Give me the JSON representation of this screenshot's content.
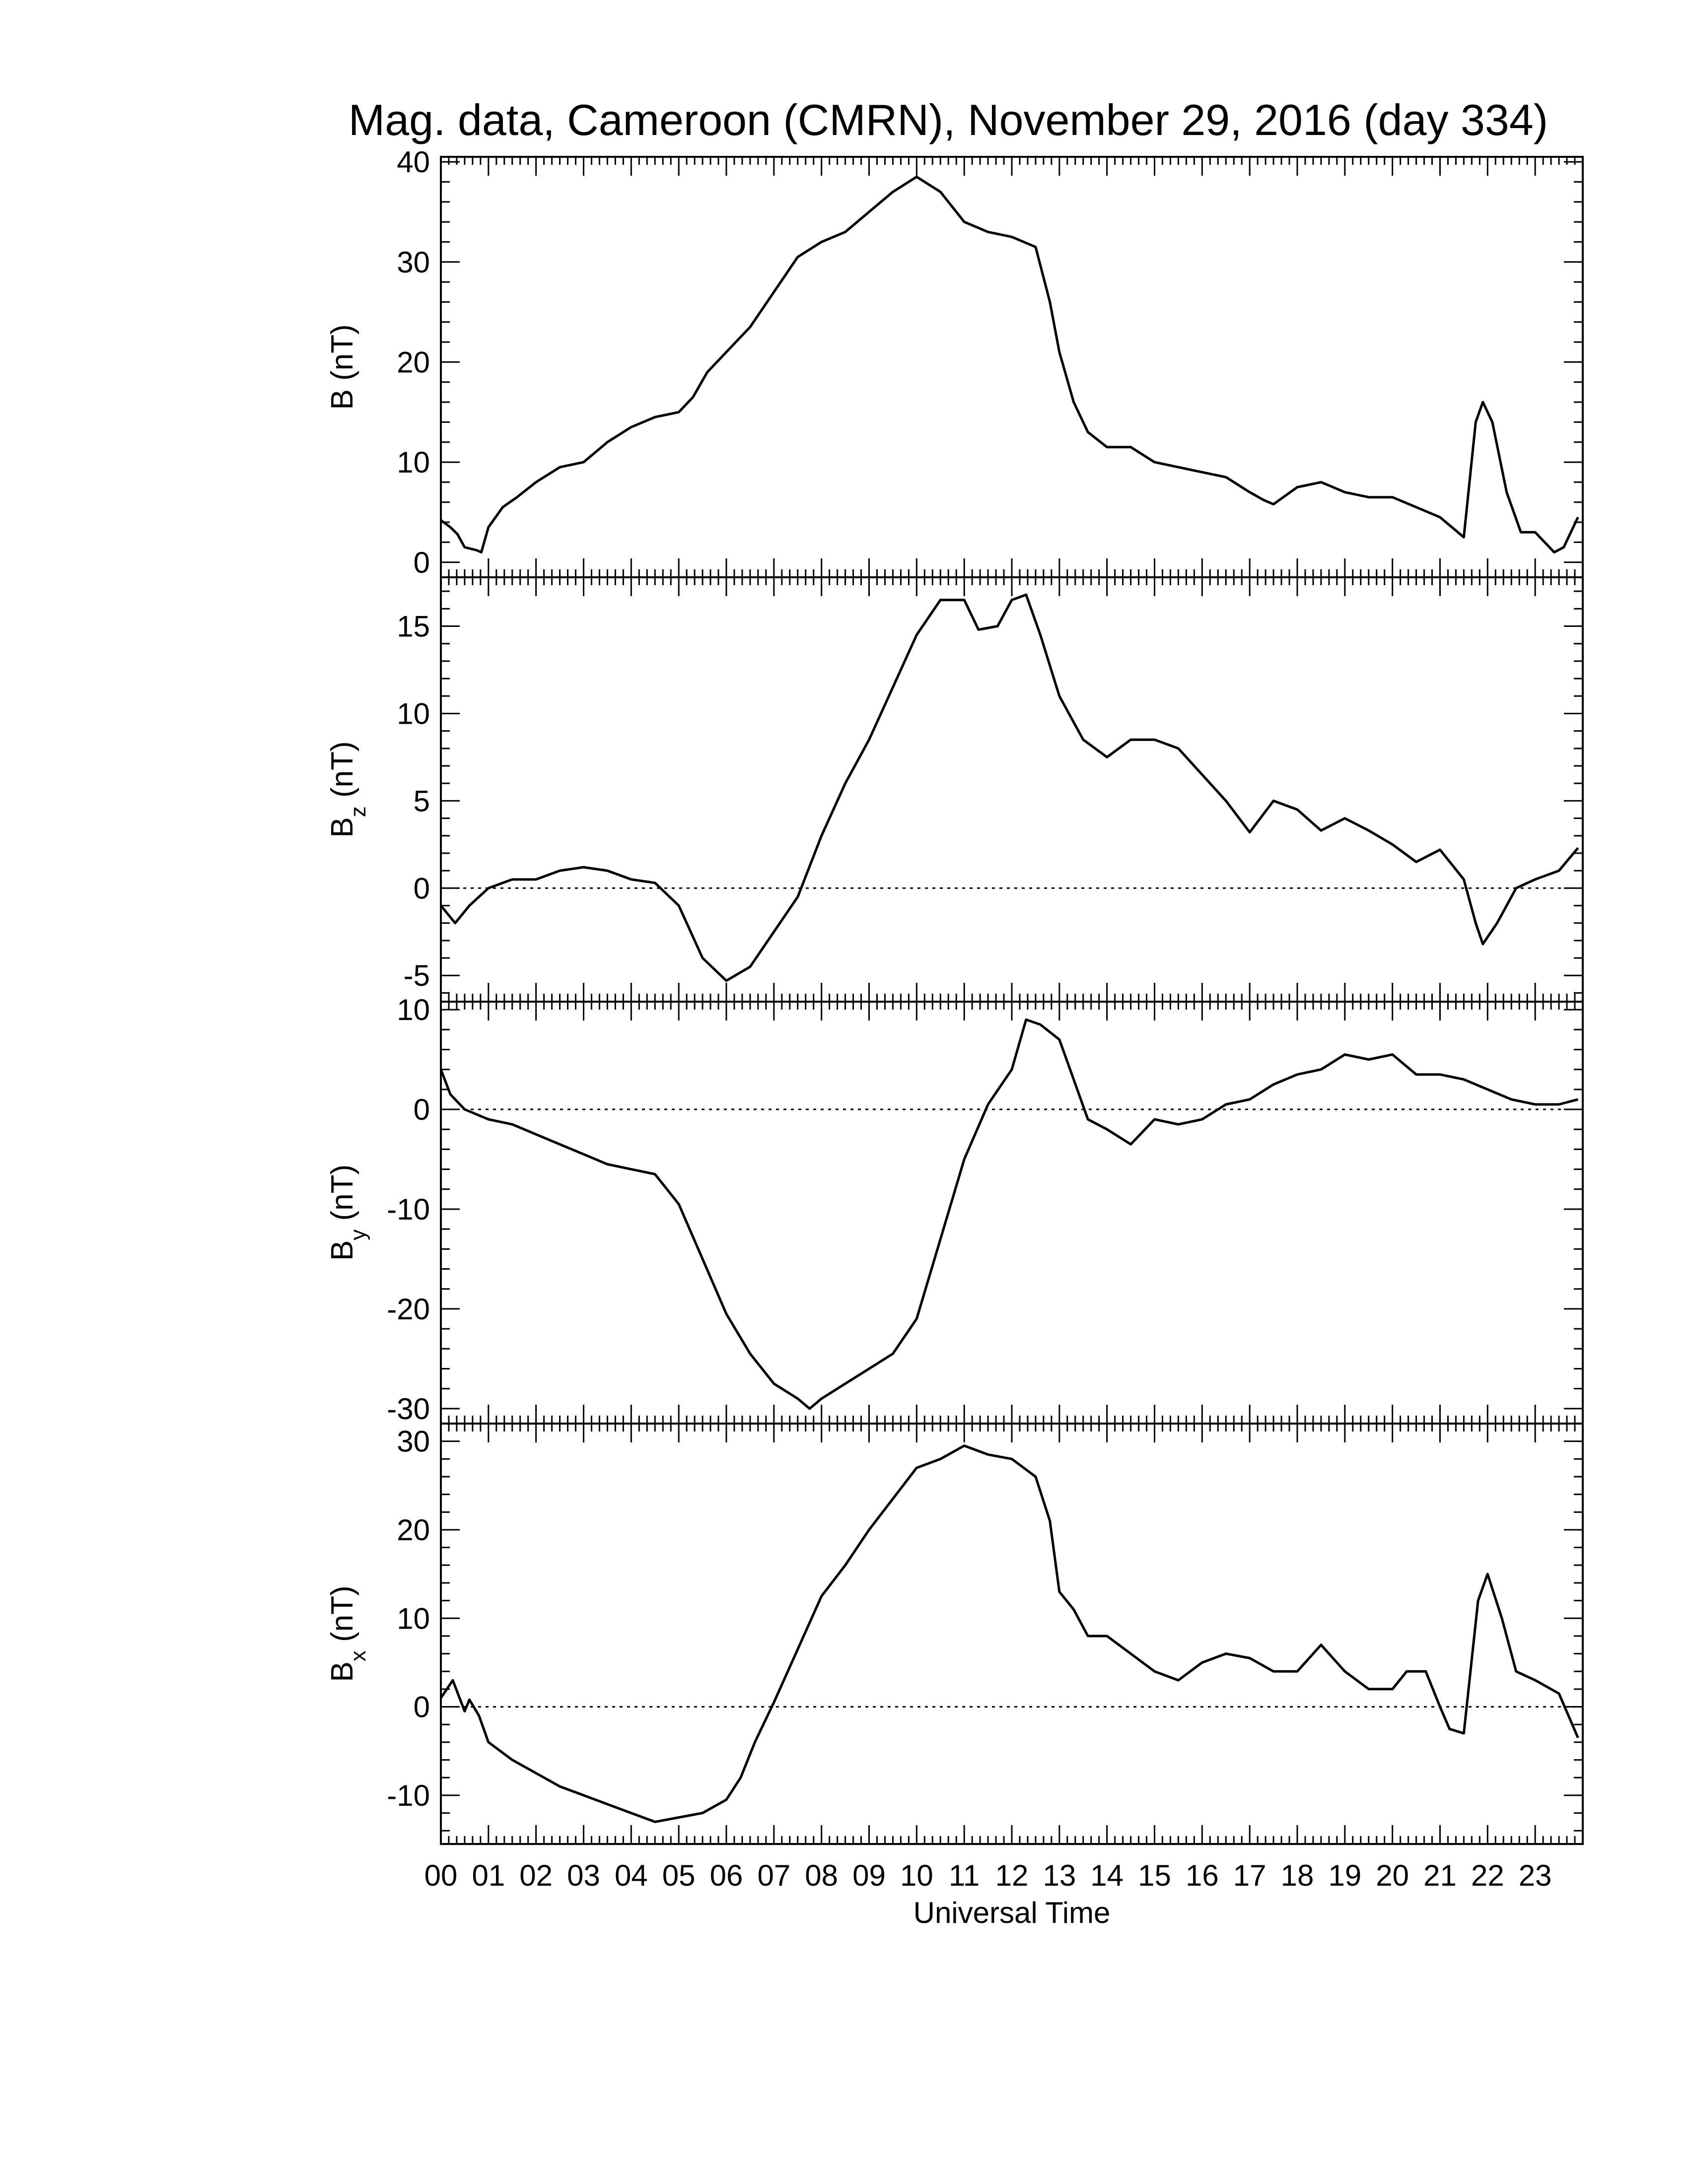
{
  "chart_data": {
    "type": "line",
    "title": "Mag. data, Cameroon (CMRN), November 29, 2016 (day 334)",
    "xlabel": "Universal Time",
    "xlim": [
      0,
      24
    ],
    "x_tick_labels": [
      "00",
      "01",
      "02",
      "03",
      "04",
      "05",
      "06",
      "07",
      "08",
      "09",
      "10",
      "11",
      "12",
      "13",
      "14",
      "15",
      "16",
      "17",
      "18",
      "19",
      "20",
      "21",
      "22",
      "23"
    ],
    "series_color": "#000000",
    "panels": [
      {
        "key": "B",
        "ylabel_main": "B",
        "ylabel_sub": "",
        "ylabel_unit": "(nT)",
        "ylim": [
          -1.5,
          40.5
        ],
        "yticks": [
          0,
          10,
          20,
          30,
          40
        ],
        "ytick_labels": [
          "0",
          "10",
          "20",
          "30",
          "40"
        ],
        "zero_line": false,
        "points": [
          [
            0,
            4.2
          ],
          [
            0.2,
            3.5
          ],
          [
            0.35,
            2.8
          ],
          [
            0.5,
            1.5
          ],
          [
            0.75,
            1.2
          ],
          [
            0.85,
            1.0
          ],
          [
            1.0,
            3.5
          ],
          [
            1.3,
            5.5
          ],
          [
            1.6,
            6.5
          ],
          [
            2.0,
            8.0
          ],
          [
            2.5,
            9.5
          ],
          [
            3.0,
            10.0
          ],
          [
            3.5,
            12.0
          ],
          [
            4.0,
            13.5
          ],
          [
            4.5,
            14.5
          ],
          [
            5.0,
            15.0
          ],
          [
            5.3,
            16.5
          ],
          [
            5.6,
            19.0
          ],
          [
            6.0,
            21.0
          ],
          [
            6.5,
            23.5
          ],
          [
            7.0,
            27.0
          ],
          [
            7.5,
            30.5
          ],
          [
            8.0,
            32.0
          ],
          [
            8.5,
            33.0
          ],
          [
            9.0,
            35.0
          ],
          [
            9.5,
            37.0
          ],
          [
            10.0,
            38.5
          ],
          [
            10.5,
            37.0
          ],
          [
            11.0,
            34.0
          ],
          [
            11.5,
            33.0
          ],
          [
            12.0,
            32.5
          ],
          [
            12.5,
            31.5
          ],
          [
            12.8,
            26.0
          ],
          [
            13.0,
            21.0
          ],
          [
            13.3,
            16.0
          ],
          [
            13.6,
            13.0
          ],
          [
            14.0,
            11.5
          ],
          [
            14.5,
            11.5
          ],
          [
            15.0,
            10.0
          ],
          [
            15.5,
            9.5
          ],
          [
            16.0,
            9.0
          ],
          [
            16.5,
            8.5
          ],
          [
            17.0,
            7.0
          ],
          [
            17.3,
            6.2
          ],
          [
            17.5,
            5.8
          ],
          [
            18.0,
            7.5
          ],
          [
            18.5,
            8.0
          ],
          [
            19.0,
            7.0
          ],
          [
            19.5,
            6.5
          ],
          [
            20.0,
            6.5
          ],
          [
            20.5,
            5.5
          ],
          [
            21.0,
            4.5
          ],
          [
            21.5,
            2.5
          ],
          [
            21.75,
            14.0
          ],
          [
            21.9,
            16.0
          ],
          [
            22.1,
            14.0
          ],
          [
            22.4,
            7.0
          ],
          [
            22.7,
            3.0
          ],
          [
            23.0,
            3.0
          ],
          [
            23.4,
            1.0
          ],
          [
            23.6,
            1.5
          ],
          [
            23.9,
            4.5
          ]
        ]
      },
      {
        "key": "Bz",
        "ylabel_main": "B",
        "ylabel_sub": "z",
        "ylabel_unit": "(nT)",
        "ylim": [
          -6.5,
          17.8
        ],
        "yticks": [
          -5,
          0,
          5,
          10,
          15
        ],
        "ytick_labels": [
          "-5",
          "0",
          "5",
          "10",
          "15"
        ],
        "zero_line": true,
        "points": [
          [
            0,
            -1.0
          ],
          [
            0.3,
            -2.0
          ],
          [
            0.6,
            -1.0
          ],
          [
            1.0,
            0.0
          ],
          [
            1.5,
            0.5
          ],
          [
            2.0,
            0.5
          ],
          [
            2.5,
            1.0
          ],
          [
            3.0,
            1.2
          ],
          [
            3.5,
            1.0
          ],
          [
            4.0,
            0.5
          ],
          [
            4.5,
            0.3
          ],
          [
            5.0,
            -1.0
          ],
          [
            5.5,
            -4.0
          ],
          [
            6.0,
            -5.3
          ],
          [
            6.5,
            -4.5
          ],
          [
            7.0,
            -2.5
          ],
          [
            7.5,
            -0.5
          ],
          [
            8.0,
            3.0
          ],
          [
            8.5,
            6.0
          ],
          [
            9.0,
            8.5
          ],
          [
            9.5,
            11.5
          ],
          [
            10.0,
            14.5
          ],
          [
            10.5,
            16.5
          ],
          [
            11.0,
            16.5
          ],
          [
            11.3,
            14.8
          ],
          [
            11.7,
            15.0
          ],
          [
            12.0,
            16.5
          ],
          [
            12.3,
            16.8
          ],
          [
            12.6,
            14.5
          ],
          [
            13.0,
            11.0
          ],
          [
            13.5,
            8.5
          ],
          [
            14.0,
            7.5
          ],
          [
            14.5,
            8.5
          ],
          [
            15.0,
            8.5
          ],
          [
            15.5,
            8.0
          ],
          [
            16.0,
            6.5
          ],
          [
            16.5,
            5.0
          ],
          [
            17.0,
            3.2
          ],
          [
            17.5,
            5.0
          ],
          [
            18.0,
            4.5
          ],
          [
            18.5,
            3.3
          ],
          [
            19.0,
            4.0
          ],
          [
            19.5,
            3.3
          ],
          [
            20.0,
            2.5
          ],
          [
            20.5,
            1.5
          ],
          [
            21.0,
            2.2
          ],
          [
            21.5,
            0.5
          ],
          [
            21.75,
            -2.0
          ],
          [
            21.9,
            -3.2
          ],
          [
            22.2,
            -2.0
          ],
          [
            22.6,
            0.0
          ],
          [
            23.0,
            0.5
          ],
          [
            23.5,
            1.0
          ],
          [
            23.9,
            2.3
          ]
        ]
      },
      {
        "key": "By",
        "ylabel_main": "B",
        "ylabel_sub": "y",
        "ylabel_unit": "(nT)",
        "ylim": [
          -31.5,
          10.8
        ],
        "yticks": [
          -30,
          -20,
          -10,
          0,
          10
        ],
        "ytick_labels": [
          "-30",
          "-20",
          "-10",
          "0",
          "10"
        ],
        "zero_line": true,
        "points": [
          [
            0,
            4.0
          ],
          [
            0.2,
            1.5
          ],
          [
            0.5,
            0.0
          ],
          [
            1.0,
            -1.0
          ],
          [
            1.5,
            -1.5
          ],
          [
            2.0,
            -2.5
          ],
          [
            2.5,
            -3.5
          ],
          [
            3.0,
            -4.5
          ],
          [
            3.5,
            -5.5
          ],
          [
            4.0,
            -6.0
          ],
          [
            4.5,
            -6.5
          ],
          [
            5.0,
            -9.5
          ],
          [
            5.5,
            -15.0
          ],
          [
            6.0,
            -20.5
          ],
          [
            6.5,
            -24.5
          ],
          [
            7.0,
            -27.5
          ],
          [
            7.5,
            -29.0
          ],
          [
            7.75,
            -30.0
          ],
          [
            8.0,
            -29.0
          ],
          [
            8.5,
            -27.5
          ],
          [
            9.0,
            -26.0
          ],
          [
            9.5,
            -24.5
          ],
          [
            10.0,
            -21.0
          ],
          [
            10.5,
            -13.0
          ],
          [
            11.0,
            -5.0
          ],
          [
            11.5,
            0.5
          ],
          [
            12.0,
            4.0
          ],
          [
            12.3,
            9.0
          ],
          [
            12.6,
            8.5
          ],
          [
            13.0,
            7.0
          ],
          [
            13.3,
            3.0
          ],
          [
            13.6,
            -1.0
          ],
          [
            14.0,
            -2.0
          ],
          [
            14.5,
            -3.5
          ],
          [
            15.0,
            -1.0
          ],
          [
            15.5,
            -1.5
          ],
          [
            16.0,
            -1.0
          ],
          [
            16.5,
            0.5
          ],
          [
            17.0,
            1.0
          ],
          [
            17.5,
            2.5
          ],
          [
            18.0,
            3.5
          ],
          [
            18.5,
            4.0
          ],
          [
            19.0,
            5.5
          ],
          [
            19.5,
            5.0
          ],
          [
            20.0,
            5.5
          ],
          [
            20.5,
            3.5
          ],
          [
            21.0,
            3.5
          ],
          [
            21.5,
            3.0
          ],
          [
            22.0,
            2.0
          ],
          [
            22.5,
            1.0
          ],
          [
            23.0,
            0.5
          ],
          [
            23.5,
            0.5
          ],
          [
            23.9,
            1.0
          ]
        ]
      },
      {
        "key": "Bx",
        "ylabel_main": "B",
        "ylabel_sub": "x",
        "ylabel_unit": "(nT)",
        "ylim": [
          -15.5,
          32.0
        ],
        "yticks": [
          -10,
          0,
          10,
          20,
          30
        ],
        "ytick_labels": [
          "-10",
          "0",
          "10",
          "20",
          "30"
        ],
        "zero_line": true,
        "points": [
          [
            0,
            1.0
          ],
          [
            0.25,
            3.0
          ],
          [
            0.5,
            -0.5
          ],
          [
            0.6,
            0.8
          ],
          [
            0.8,
            -1.0
          ],
          [
            1.0,
            -4.0
          ],
          [
            1.5,
            -6.0
          ],
          [
            2.0,
            -7.5
          ],
          [
            2.5,
            -9.0
          ],
          [
            3.0,
            -10.0
          ],
          [
            3.5,
            -11.0
          ],
          [
            4.0,
            -12.0
          ],
          [
            4.5,
            -13.0
          ],
          [
            5.0,
            -12.5
          ],
          [
            5.5,
            -12.0
          ],
          [
            6.0,
            -10.5
          ],
          [
            6.3,
            -8.0
          ],
          [
            6.6,
            -4.0
          ],
          [
            7.0,
            0.5
          ],
          [
            7.5,
            6.5
          ],
          [
            8.0,
            12.5
          ],
          [
            8.5,
            16.0
          ],
          [
            9.0,
            20.0
          ],
          [
            9.5,
            23.5
          ],
          [
            10.0,
            27.0
          ],
          [
            10.5,
            28.0
          ],
          [
            11.0,
            29.5
          ],
          [
            11.5,
            28.5
          ],
          [
            12.0,
            28.0
          ],
          [
            12.5,
            26.0
          ],
          [
            12.8,
            21.0
          ],
          [
            13.0,
            13.0
          ],
          [
            13.3,
            11.0
          ],
          [
            13.6,
            8.0
          ],
          [
            14.0,
            8.0
          ],
          [
            14.5,
            6.0
          ],
          [
            15.0,
            4.0
          ],
          [
            15.5,
            3.0
          ],
          [
            16.0,
            5.0
          ],
          [
            16.5,
            6.0
          ],
          [
            17.0,
            5.5
          ],
          [
            17.5,
            4.0
          ],
          [
            18.0,
            4.0
          ],
          [
            18.5,
            7.0
          ],
          [
            19.0,
            4.0
          ],
          [
            19.5,
            2.0
          ],
          [
            20.0,
            2.0
          ],
          [
            20.3,
            4.0
          ],
          [
            20.7,
            4.0
          ],
          [
            21.0,
            0.0
          ],
          [
            21.2,
            -2.5
          ],
          [
            21.5,
            -3.0
          ],
          [
            21.8,
            12.0
          ],
          [
            22.0,
            15.0
          ],
          [
            22.3,
            10.0
          ],
          [
            22.6,
            4.0
          ],
          [
            23.0,
            3.0
          ],
          [
            23.5,
            1.5
          ],
          [
            23.9,
            -3.5
          ]
        ]
      }
    ]
  }
}
